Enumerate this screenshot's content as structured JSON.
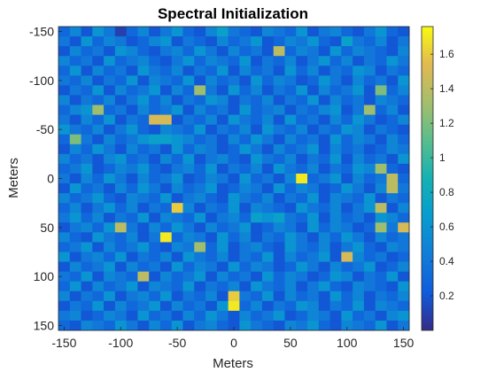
{
  "chart_data": {
    "type": "heatmap",
    "title": "Spectral Initialization",
    "xlabel": "Meters",
    "ylabel": "Meters",
    "xlim": [
      -155,
      155
    ],
    "ylim": [
      -155,
      155
    ],
    "y_direction": "reversed",
    "grid": false,
    "colormap": "parula",
    "colorbar": {
      "limits": [
        0,
        1.76
      ],
      "ticks": [
        0.2,
        0.4,
        0.6,
        0.8,
        1,
        1.2,
        1.4,
        1.6
      ],
      "tick_labels": [
        "0.2",
        "0.4",
        "0.6",
        "0.8",
        "1",
        "1.2",
        "1.4",
        "1.6"
      ]
    },
    "x_ticks": [
      -150,
      -100,
      -50,
      0,
      50,
      100,
      150
    ],
    "x_tick_labels": [
      "-150",
      "-100",
      "-50",
      "0",
      "50",
      "100",
      "150"
    ],
    "y_ticks": [
      -150,
      -100,
      -50,
      0,
      50,
      100,
      150
    ],
    "y_tick_labels": [
      "-150",
      "-100",
      "-50",
      "0",
      "50",
      "100",
      "150"
    ],
    "grid_size": [
      31,
      31
    ],
    "cell_width_m": 10,
    "values": [
      [
        0.3,
        0.5,
        0.2,
        0.6,
        0.4,
        0.1,
        0.3,
        0.5,
        0.2,
        0.4,
        0.6,
        0.3,
        0.2,
        0.5,
        0.7,
        0.4,
        0.3,
        0.2,
        0.5,
        0.4,
        0.3,
        0.6,
        0.2,
        0.4,
        0.5,
        0.3,
        0.2,
        0.4,
        0.6,
        0.3,
        0.2
      ],
      [
        0.4,
        0.2,
        0.6,
        0.3,
        0.5,
        0.4,
        0.2,
        0.3,
        0.5,
        0.6,
        0.2,
        0.4,
        0.3,
        0.2,
        0.5,
        0.3,
        0.4,
        0.6,
        0.2,
        0.3,
        0.5,
        0.4,
        0.6,
        0.3,
        0.2,
        0.7,
        0.4,
        0.3,
        0.5,
        0.2,
        0.4
      ],
      [
        0.2,
        0.5,
        0.3,
        0.4,
        0.2,
        0.6,
        0.5,
        0.3,
        0.2,
        0.4,
        0.5,
        0.3,
        0.6,
        0.4,
        0.2,
        0.5,
        0.3,
        0.4,
        0.2,
        1.4,
        0.3,
        0.5,
        0.4,
        0.2,
        0.6,
        0.3,
        0.5,
        0.4,
        0.3,
        0.2,
        0.5
      ],
      [
        0.5,
        0.3,
        0.4,
        0.2,
        0.6,
        0.3,
        0.4,
        0.5,
        0.3,
        0.2,
        0.4,
        0.6,
        0.3,
        0.5,
        0.4,
        0.3,
        0.6,
        0.2,
        0.4,
        0.3,
        0.5,
        0.2,
        0.4,
        0.6,
        0.3,
        0.5,
        0.2,
        0.4,
        0.3,
        0.6,
        0.4
      ],
      [
        0.3,
        0.6,
        0.2,
        0.5,
        0.3,
        0.4,
        0.2,
        0.6,
        0.4,
        0.3,
        0.5,
        0.2,
        0.4,
        0.3,
        0.6,
        0.2,
        0.5,
        0.3,
        0.4,
        0.2,
        0.6,
        0.3,
        0.5,
        0.2,
        0.4,
        0.3,
        0.6,
        0.5,
        0.2,
        0.4,
        0.3
      ],
      [
        0.4,
        0.3,
        0.5,
        0.2,
        0.4,
        0.3,
        0.6,
        0.2,
        0.5,
        0.4,
        0.3,
        0.6,
        0.2,
        0.5,
        0.3,
        0.4,
        0.2,
        0.6,
        0.3,
        0.5,
        0.4,
        0.2,
        0.3,
        0.6,
        0.4,
        0.2,
        0.5,
        0.3,
        0.4,
        0.2,
        0.6
      ],
      [
        0.2,
        0.4,
        0.3,
        0.6,
        0.2,
        0.5,
        0.3,
        0.4,
        0.6,
        0.2,
        0.5,
        0.3,
        1.3,
        0.4,
        0.2,
        0.6,
        0.3,
        0.5,
        0.2,
        0.4,
        0.3,
        0.6,
        0.2,
        0.5,
        0.3,
        0.4,
        0.6,
        0.2,
        1.2,
        0.3,
        0.5
      ],
      [
        0.5,
        0.2,
        0.4,
        0.3,
        0.5,
        0.2,
        0.4,
        0.6,
        0.3,
        0.5,
        0.2,
        0.4,
        0.3,
        0.6,
        0.5,
        0.2,
        0.4,
        0.3,
        0.5,
        0.2,
        0.4,
        0.3,
        0.6,
        0.2,
        0.5,
        0.3,
        0.4,
        0.2,
        0.5,
        0.4,
        0.3
      ],
      [
        0.3,
        0.5,
        0.6,
        1.3,
        0.3,
        0.4,
        0.2,
        0.5,
        0.3,
        0.4,
        0.6,
        0.2,
        0.5,
        0.3,
        0.4,
        0.2,
        0.6,
        0.3,
        0.4,
        0.5,
        0.2,
        0.4,
        0.3,
        0.5,
        0.6,
        0.2,
        0.4,
        1.3,
        0.3,
        0.5,
        0.2
      ],
      [
        0.4,
        0.2,
        0.5,
        0.3,
        0.6,
        0.2,
        0.4,
        0.3,
        1.5,
        1.5,
        0.2,
        0.4,
        0.3,
        0.5,
        0.2,
        0.6,
        0.4,
        0.3,
        0.5,
        0.2,
        0.6,
        0.3,
        0.4,
        0.2,
        0.5,
        0.3,
        0.6,
        0.4,
        0.2,
        0.3,
        0.5
      ],
      [
        0.6,
        0.4,
        0.3,
        0.5,
        0.2,
        0.4,
        0.6,
        0.3,
        0.2,
        0.5,
        0.4,
        0.3,
        0.6,
        0.2,
        0.4,
        0.3,
        0.5,
        0.2,
        0.6,
        0.4,
        0.3,
        0.5,
        0.2,
        0.4,
        0.3,
        0.6,
        0.5,
        0.2,
        0.4,
        0.3,
        0.2
      ],
      [
        0.3,
        1.2,
        0.4,
        0.2,
        0.5,
        0.3,
        0.4,
        0.6,
        0.7,
        0.7,
        0.6,
        0.5,
        0.3,
        0.4,
        0.2,
        0.5,
        0.3,
        0.6,
        0.4,
        0.2,
        0.5,
        0.3,
        0.4,
        0.2,
        0.6,
        0.3,
        0.5,
        0.4,
        0.2,
        0.5,
        0.3
      ],
      [
        0.2,
        0.5,
        0.3,
        0.6,
        0.4,
        0.2,
        0.5,
        0.3,
        0.4,
        0.2,
        0.6,
        0.3,
        0.5,
        0.4,
        0.2,
        0.3,
        0.6,
        0.4,
        0.2,
        0.5,
        0.3,
        0.4,
        0.6,
        0.2,
        0.5,
        0.3,
        0.4,
        0.2,
        0.3,
        0.5,
        0.4
      ],
      [
        0.5,
        0.3,
        0.4,
        0.2,
        0.5,
        0.6,
        0.3,
        0.4,
        0.2,
        0.5,
        0.3,
        0.6,
        0.2,
        0.4,
        0.5,
        0.3,
        0.2,
        0.6,
        0.4,
        0.3,
        0.5,
        0.2,
        0.4,
        0.3,
        0.6,
        0.2,
        0.5,
        0.3,
        0.4,
        0.2,
        0.6
      ],
      [
        0.3,
        0.4,
        0.6,
        0.2,
        0.3,
        0.5,
        0.4,
        0.6,
        0.3,
        0.2,
        0.4,
        0.5,
        0.3,
        0.6,
        0.2,
        0.4,
        0.3,
        0.5,
        0.2,
        0.6,
        0.4,
        0.3,
        0.5,
        0.2,
        0.4,
        0.3,
        0.6,
        0.5,
        1.3,
        0.3,
        0.2
      ],
      [
        0.4,
        0.2,
        0.5,
        0.3,
        0.6,
        0.4,
        0.2,
        0.5,
        0.3,
        0.4,
        0.6,
        0.2,
        0.3,
        0.5,
        0.4,
        0.2,
        0.6,
        0.3,
        0.4,
        0.2,
        0.5,
        1.7,
        0.3,
        0.4,
        0.6,
        0.2,
        0.5,
        0.3,
        0.4,
        1.4,
        0.3
      ],
      [
        0.2,
        0.6,
        0.3,
        0.4,
        0.2,
        0.5,
        0.3,
        0.6,
        0.4,
        0.2,
        0.5,
        0.3,
        0.4,
        0.6,
        0.2,
        0.3,
        0.5,
        0.4,
        0.2,
        0.6,
        0.3,
        0.5,
        0.4,
        0.2,
        0.3,
        0.6,
        0.4,
        0.2,
        0.5,
        1.4,
        0.4
      ],
      [
        0.5,
        0.3,
        0.4,
        0.6,
        0.3,
        0.2,
        0.5,
        0.4,
        0.3,
        0.6,
        0.2,
        0.4,
        0.5,
        0.3,
        0.2,
        0.6,
        0.4,
        0.3,
        0.5,
        0.2,
        0.4,
        0.3,
        0.6,
        0.2,
        0.5,
        0.4,
        0.3,
        0.6,
        0.2,
        0.4,
        0.3
      ],
      [
        0.3,
        0.5,
        0.2,
        0.4,
        0.6,
        0.3,
        0.5,
        0.2,
        0.4,
        0.3,
        1.6,
        0.5,
        0.2,
        0.4,
        0.3,
        0.6,
        0.2,
        0.5,
        0.4,
        0.3,
        0.2,
        0.6,
        0.4,
        0.3,
        0.5,
        0.2,
        0.4,
        0.6,
        1.4,
        0.2,
        0.5
      ],
      [
        0.4,
        0.6,
        0.3,
        0.5,
        0.2,
        0.4,
        0.3,
        0.6,
        0.2,
        0.5,
        0.4,
        0.3,
        0.6,
        0.2,
        0.4,
        0.5,
        0.3,
        0.7,
        0.6,
        0.7,
        0.4,
        0.3,
        0.6,
        0.2,
        0.5,
        0.3,
        0.4,
        0.2,
        0.6,
        0.5,
        0.3
      ],
      [
        0.2,
        0.4,
        0.5,
        0.3,
        0.6,
        1.4,
        0.4,
        0.2,
        0.5,
        0.3,
        0.6,
        0.4,
        0.2,
        0.5,
        0.3,
        0.4,
        0.6,
        0.2,
        0.3,
        0.5,
        0.4,
        0.2,
        0.6,
        0.3,
        0.5,
        0.4,
        0.2,
        0.3,
        1.3,
        0.4,
        1.5
      ],
      [
        0.5,
        0.3,
        0.2,
        0.6,
        0.4,
        0.3,
        0.5,
        0.2,
        0.4,
        1.7,
        0.3,
        0.5,
        0.4,
        0.2,
        0.6,
        0.3,
        0.5,
        0.2,
        0.4,
        0.3,
        0.6,
        0.4,
        0.2,
        0.5,
        0.3,
        0.6,
        0.4,
        0.2,
        0.5,
        0.3,
        0.4
      ],
      [
        0.3,
        0.4,
        0.6,
        0.2,
        0.5,
        0.3,
        0.4,
        0.6,
        0.3,
        0.2,
        0.5,
        0.4,
        1.3,
        0.3,
        0.6,
        0.2,
        0.4,
        0.5,
        0.3,
        0.2,
        0.6,
        0.4,
        0.3,
        0.5,
        0.2,
        0.4,
        0.6,
        0.3,
        0.2,
        0.5,
        0.4
      ],
      [
        0.6,
        0.2,
        0.4,
        0.5,
        0.3,
        0.6,
        0.2,
        0.4,
        0.3,
        0.5,
        0.2,
        0.6,
        0.4,
        0.3,
        0.5,
        0.2,
        0.4,
        0.3,
        0.6,
        0.2,
        0.5,
        0.3,
        0.4,
        0.6,
        0.2,
        1.5,
        0.5,
        0.3,
        0.4,
        0.2,
        0.3
      ],
      [
        0.2,
        0.5,
        0.3,
        0.4,
        0.6,
        0.2,
        0.5,
        0.3,
        0.4,
        0.2,
        0.6,
        0.3,
        0.5,
        0.4,
        0.2,
        0.6,
        0.3,
        0.5,
        0.4,
        0.2,
        0.3,
        0.6,
        0.4,
        0.2,
        0.5,
        0.3,
        0.4,
        0.6,
        0.2,
        0.3,
        0.5
      ],
      [
        0.4,
        0.3,
        0.6,
        0.2,
        0.5,
        0.4,
        0.3,
        1.4,
        0.2,
        0.5,
        0.3,
        0.4,
        0.6,
        0.2,
        0.5,
        0.3,
        0.4,
        0.2,
        0.6,
        0.3,
        0.5,
        0.4,
        0.2,
        0.3,
        0.6,
        0.5,
        0.2,
        0.4,
        0.3,
        0.6,
        0.2
      ],
      [
        0.3,
        0.6,
        0.2,
        0.5,
        0.3,
        0.4,
        0.6,
        0.2,
        0.5,
        0.4,
        0.3,
        0.6,
        0.2,
        0.4,
        0.3,
        0.5,
        0.2,
        0.6,
        0.4,
        0.3,
        0.5,
        0.2,
        0.4,
        0.6,
        0.3,
        0.2,
        0.5,
        0.4,
        0.3,
        0.2,
        0.6
      ],
      [
        0.5,
        0.2,
        0.4,
        0.3,
        0.6,
        0.2,
        0.4,
        0.5,
        0.3,
        0.6,
        0.2,
        0.4,
        0.3,
        0.5,
        0.2,
        1.6,
        0.4,
        0.3,
        0.6,
        0.2,
        0.5,
        0.3,
        0.4,
        0.2,
        0.6,
        0.3,
        0.5,
        0.2,
        0.4,
        0.3,
        0.5
      ],
      [
        0.2,
        0.4,
        0.3,
        0.6,
        0.2,
        0.5,
        0.3,
        0.4,
        0.6,
        0.2,
        0.5,
        0.3,
        0.4,
        0.2,
        0.6,
        1.7,
        0.3,
        0.5,
        0.2,
        0.4,
        0.3,
        0.6,
        0.5,
        0.2,
        0.4,
        0.3,
        0.6,
        0.2,
        0.5,
        0.4,
        0.3
      ],
      [
        0.4,
        0.5,
        0.2,
        0.3,
        0.5,
        0.4,
        0.2,
        0.6,
        0.3,
        0.4,
        0.2,
        0.5,
        0.3,
        0.6,
        0.4,
        0.2,
        0.5,
        0.3,
        0.4,
        0.6,
        0.2,
        0.3,
        0.5,
        0.4,
        0.2,
        0.6,
        0.3,
        0.4,
        0.2,
        0.5,
        0.6
      ],
      [
        0.3,
        0.2,
        0.5,
        0.4,
        0.3,
        0.6,
        0.4,
        0.2,
        0.5,
        0.3,
        0.6,
        0.2,
        0.4,
        0.5,
        0.3,
        0.2,
        0.6,
        0.4,
        0.3,
        0.2,
        0.5,
        0.4,
        0.6,
        0.3,
        0.2,
        0.5,
        0.4,
        0.3,
        0.6,
        0.2,
        0.4
      ]
    ]
  }
}
